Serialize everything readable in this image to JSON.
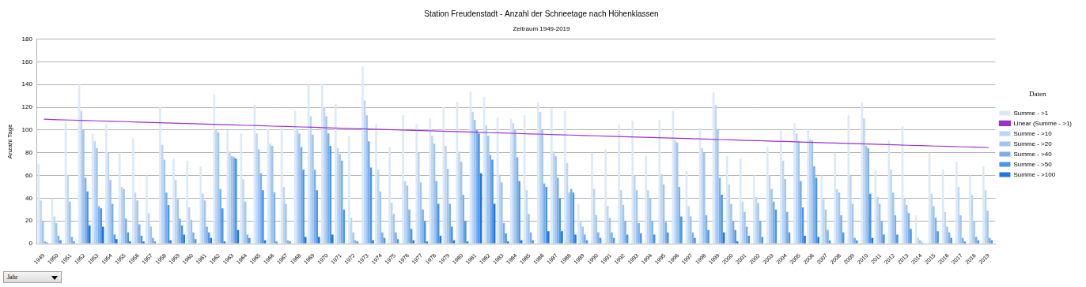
{
  "chart_data": {
    "type": "bar",
    "title": "Station Freudenstadt - Anzahl der Schneetage nach Höhenklassen",
    "subtitle": "Zeitraum 1949-2019",
    "y_label": "Anzahl Tage",
    "x_label": "Jahr",
    "legend_title": "Daten",
    "legend": "right",
    "grid": true,
    "ylim": [
      0,
      180
    ],
    "yticks": [
      0,
      20,
      40,
      60,
      80,
      100,
      120,
      140,
      160,
      180
    ],
    "categories": [
      "1949",
      "1950",
      "1951",
      "1952",
      "1953",
      "1954",
      "1955",
      "1956",
      "1957",
      "1958",
      "1959",
      "1960",
      "1961",
      "1962",
      "1963",
      "1964",
      "1965",
      "1966",
      "1967",
      "1968",
      "1969",
      "1970",
      "1971",
      "1972",
      "1973",
      "1974",
      "1975",
      "1976",
      "1977",
      "1978",
      "1979",
      "1980",
      "1981",
      "1982",
      "1983",
      "1984",
      "1985",
      "1986",
      "1987",
      "1988",
      "1989",
      "1990",
      "1991",
      "1992",
      "1993",
      "1994",
      "1995",
      "1996",
      "1997",
      "1998",
      "1999",
      "2000",
      "2001",
      "2002",
      "2003",
      "2004",
      "2005",
      "2006",
      "2007",
      "2008",
      "2009",
      "2010",
      "2011",
      "2012",
      "2013",
      "2014",
      "2015",
      "2016",
      "2017",
      "2018",
      "2019"
    ],
    "series": [
      {
        "name": "Summe - >1",
        "color": "#dce9f8",
        "values": [
          70,
          40,
          107,
          140,
          97,
          105,
          80,
          93,
          60,
          120,
          75,
          73,
          68,
          131,
          100,
          97,
          122,
          101,
          103,
          117,
          140,
          141,
          123,
          95,
          156,
          105,
          85,
          113,
          105,
          110,
          120,
          125,
          134,
          129,
          111,
          110,
          113,
          124,
          119,
          117,
          35,
          80,
          83,
          105,
          108,
          77,
          109,
          117,
          64,
          102,
          133,
          77,
          75,
          60,
          85,
          99,
          106,
          101,
          60,
          80,
          113,
          124,
          65,
          91,
          103,
          25,
          80,
          65,
          72,
          60,
          68
        ]
      },
      {
        "name": "Linear (Summe - >1)",
        "type": "line",
        "color": "#9b30d0",
        "values": [
          109.5,
          109.1,
          108.8,
          108.4,
          108.1,
          107.7,
          107.4,
          107.0,
          106.6,
          106.3,
          105.9,
          105.6,
          105.2,
          104.9,
          104.5,
          104.1,
          103.8,
          103.4,
          103.1,
          102.7,
          102.4,
          102.0,
          101.6,
          101.3,
          100.9,
          100.6,
          100.2,
          99.9,
          99.5,
          99.1,
          98.8,
          98.4,
          98.1,
          97.7,
          97.4,
          97.0,
          96.6,
          96.3,
          95.9,
          95.6,
          95.2,
          94.9,
          94.5,
          94.1,
          93.8,
          93.4,
          93.1,
          92.7,
          92.4,
          92.0,
          91.6,
          91.3,
          90.9,
          90.6,
          90.2,
          89.9,
          89.5,
          89.1,
          88.8,
          88.4,
          88.1,
          87.7,
          87.4,
          87.0,
          86.6,
          86.3,
          85.9,
          85.6,
          85.2,
          84.9,
          84.5
        ]
      },
      {
        "name": "Summe - >10",
        "color": "#bcd6f4",
        "values": [
          38,
          24,
          60,
          117,
          90,
          80,
          50,
          45,
          27,
          87,
          56,
          32,
          44,
          100,
          81,
          57,
          97,
          88,
          50,
          101,
          112,
          120,
          84,
          23,
          126,
          65,
          36,
          55,
          80,
          95,
          86,
          81,
          116,
          104,
          60,
          106,
          47,
          116,
          81,
          71,
          20,
          48,
          33,
          47,
          60,
          47,
          61,
          91,
          33,
          84,
          122,
          52,
          37,
          41,
          60,
          73,
          97,
          92,
          39,
          48,
          60,
          110,
          41,
          65,
          40,
          5,
          44,
          28,
          50,
          43,
          47
        ]
      },
      {
        "name": "Summe - >20",
        "color": "#9fc5f0",
        "values": [
          20,
          18,
          37,
          100,
          84,
          56,
          48,
          38,
          15,
          74,
          39,
          21,
          38,
          98,
          77,
          37,
          83,
          86,
          35,
          97,
          96,
          112,
          79,
          10,
          113,
          46,
          26,
          51,
          54,
          88,
          66,
          72,
          109,
          95,
          54,
          100,
          26,
          100,
          77,
          45,
          15,
          25,
          23,
          34,
          47,
          40,
          52,
          89,
          24,
          80,
          101,
          35,
          28,
          36,
          48,
          57,
          90,
          91,
          30,
          45,
          35,
          86,
          35,
          45,
          34,
          3,
          33,
          15,
          25,
          20,
          29
        ]
      },
      {
        "name": "Summe - >40",
        "color": "#7aafec",
        "values": [
          2,
          7,
          6,
          58,
          33,
          35,
          22,
          17,
          5,
          45,
          22,
          10,
          15,
          48,
          76,
          8,
          62,
          45,
          3,
          85,
          65,
          97,
          73,
          3,
          90,
          10,
          10,
          30,
          30,
          55,
          35,
          43,
          100,
          78,
          18,
          76,
          10,
          53,
          58,
          48,
          8,
          10,
          10,
          20,
          18,
          20,
          19,
          50,
          10,
          25,
          58,
          20,
          15,
          20,
          37,
          28,
          55,
          68,
          12,
          25,
          5,
          84,
          20,
          25,
          27,
          1,
          23,
          10,
          5,
          6,
          5
        ]
      },
      {
        "name": "Summe - >50",
        "color": "#4a95ea",
        "values": [
          1,
          3,
          2,
          46,
          31,
          8,
          10,
          7,
          2,
          34,
          16,
          4,
          10,
          31,
          75,
          5,
          47,
          2,
          2,
          65,
          47,
          86,
          30,
          2,
          67,
          5,
          4,
          13,
          20,
          35,
          15,
          20,
          97,
          74,
          9,
          55,
          3,
          50,
          40,
          45,
          3,
          5,
          5,
          8,
          9,
          8,
          10,
          24,
          5,
          12,
          43,
          12,
          7,
          6,
          30,
          10,
          32,
          58,
          3,
          10,
          3,
          44,
          8,
          8,
          13,
          0,
          11,
          5,
          2,
          3,
          3
        ]
      },
      {
        "name": "Summe - >100",
        "color": "#1d74e6",
        "values": [
          0,
          0,
          0,
          16,
          15,
          4,
          2,
          2,
          0,
          3,
          8,
          0,
          5,
          2,
          12,
          0,
          3,
          0,
          0,
          6,
          6,
          8,
          0,
          0,
          3,
          0,
          0,
          3,
          2,
          7,
          3,
          2,
          62,
          35,
          2,
          3,
          0,
          11,
          11,
          8,
          0,
          0,
          0,
          0,
          0,
          0,
          0,
          0,
          0,
          0,
          10,
          2,
          0,
          0,
          0,
          0,
          7,
          6,
          0,
          0,
          0,
          5,
          0,
          0,
          0,
          0,
          0,
          0,
          0,
          0,
          0
        ]
      }
    ]
  }
}
